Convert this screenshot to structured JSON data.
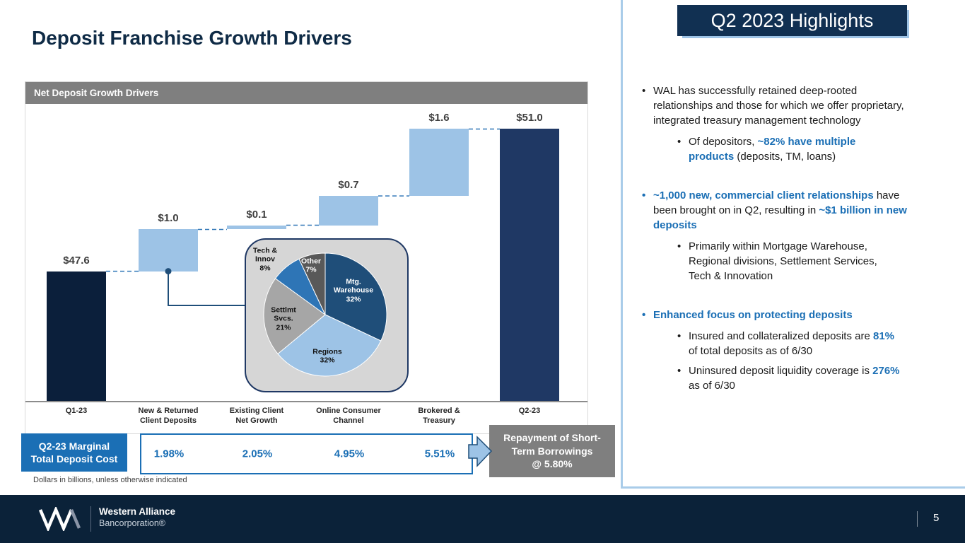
{
  "title": "Deposit Franchise Growth Drivers",
  "footnote": "Dollars in billions, unless otherwise indicated",
  "chart": {
    "header": "Net Deposit Growth Drivers"
  },
  "chart_data": [
    {
      "type": "bar",
      "subtype": "waterfall",
      "title": "Net Deposit Growth Drivers",
      "unit": "$ billions",
      "ylim": [
        44.5,
        51.6
      ],
      "categories": [
        "Q1-23",
        "New & Returned Client Deposits",
        "Existing Client Net Growth",
        "Online Consumer Channel",
        "Brokered & Treasury",
        "Q2-23"
      ],
      "bars": [
        {
          "category": "Q1-23",
          "axis_label": "Q1-23",
          "kind": "total",
          "value": 47.6,
          "label": "$47.6",
          "color": "#0B1F3B"
        },
        {
          "category": "New & Returned Client Deposits",
          "axis_label": "New & Returned\nClient Deposits",
          "kind": "increase",
          "value": 1.0,
          "label": "$1.0",
          "color": "#9DC3E6"
        },
        {
          "category": "Existing Client Net Growth",
          "axis_label": "Existing Client\nNet Growth",
          "kind": "increase",
          "value": 0.1,
          "label": "$0.1",
          "color": "#9DC3E6"
        },
        {
          "category": "Online Consumer Channel",
          "axis_label": "Online Consumer\nChannel",
          "kind": "increase",
          "value": 0.7,
          "label": "$0.7",
          "color": "#9DC3E6"
        },
        {
          "category": "Brokered & Treasury",
          "axis_label": "Brokered &\nTreasury",
          "kind": "increase",
          "value": 1.6,
          "label": "$1.6",
          "color": "#9DC3E6"
        },
        {
          "category": "Q2-23",
          "axis_label": "Q2-23",
          "kind": "total",
          "value": 51.0,
          "label": "$51.0",
          "color": "#1F3864"
        }
      ]
    },
    {
      "type": "pie",
      "slices": [
        {
          "name": "Mtg. Warehouse",
          "pct": 32,
          "label": "Mtg.\nWarehouse\n32%",
          "color": "#1F4E79",
          "text_color": "#FFFFFF"
        },
        {
          "name": "Regions",
          "pct": 32,
          "label": "Regions\n32%",
          "color": "#9DC3E6",
          "text_color": "#111111"
        },
        {
          "name": "Settlmt Svcs.",
          "pct": 21,
          "label": "Settlmt\nSvcs.\n21%",
          "color": "#A6A6A6",
          "text_color": "#111111"
        },
        {
          "name": "Tech & Innov",
          "pct": 8,
          "label": "Tech &\nInnov\n8%",
          "color": "#2E75B6",
          "text_color": "#111111"
        },
        {
          "name": "Other",
          "pct": 7,
          "label": "Other\n7%",
          "color": "#595959",
          "text_color": "#FFFFFF"
        }
      ]
    }
  ],
  "cost": {
    "label": "Q2-23 Marginal\nTotal Deposit Cost",
    "values": [
      "1.98%",
      "2.05%",
      "4.95%",
      "5.51%"
    ],
    "repayment": "Repayment of Short-\nTerm Borrowings\n@ 5.80%"
  },
  "highlights": {
    "title": "Q2 2023 Highlights",
    "bullets": [
      {
        "level": 1,
        "segments": [
          {
            "t": "WAL has successfully retained deep-rooted relationships and those for which we offer proprietary, integrated treasury management technology",
            "em": false
          }
        ]
      },
      {
        "level": 2,
        "segments": [
          {
            "t": "Of depositors, ",
            "em": false
          },
          {
            "t": "~82% have multiple products",
            "em": true
          },
          {
            "t": " (deposits, TM, loans)",
            "em": false
          }
        ]
      },
      {
        "level": 1,
        "space_before": true,
        "segments": [
          {
            "t": "~1,000 new, commercial client relationships",
            "em": true
          },
          {
            "t": " have been brought on in Q2, resulting in ",
            "em": false
          },
          {
            "t": "~$1 billion in new deposits",
            "em": true
          }
        ]
      },
      {
        "level": 2,
        "segments": [
          {
            "t": "Primarily within Mortgage Warehouse, Regional divisions, Settlement Services, Tech & Innovation",
            "em": false
          }
        ]
      },
      {
        "level": 1,
        "space_before": true,
        "segments": [
          {
            "t": "Enhanced focus on protecting deposits",
            "em": true
          }
        ]
      },
      {
        "level": 2,
        "segments": [
          {
            "t": "Insured and collateralized deposits are ",
            "em": false
          },
          {
            "t": "81%",
            "em": true
          },
          {
            "t": " of total deposits as of 6/30",
            "em": false
          }
        ]
      },
      {
        "level": 2,
        "segments": [
          {
            "t": "Uninsured deposit liquidity coverage is ",
            "em": false
          },
          {
            "t": "276%",
            "em": true
          },
          {
            "t": " as of 6/30",
            "em": false
          }
        ]
      }
    ]
  },
  "footer": {
    "company_line1": "Western Alliance",
    "company_line2": "Bancorporation®",
    "page_number": "5"
  },
  "colors": {
    "navy": "#0B2239",
    "accent_blue": "#1B6FB5",
    "light_blue": "#9DC3E6",
    "dark_bar_q1": "#0B1F3B",
    "dark_bar_q2": "#1F3864",
    "gray": "#7F7F7F"
  }
}
